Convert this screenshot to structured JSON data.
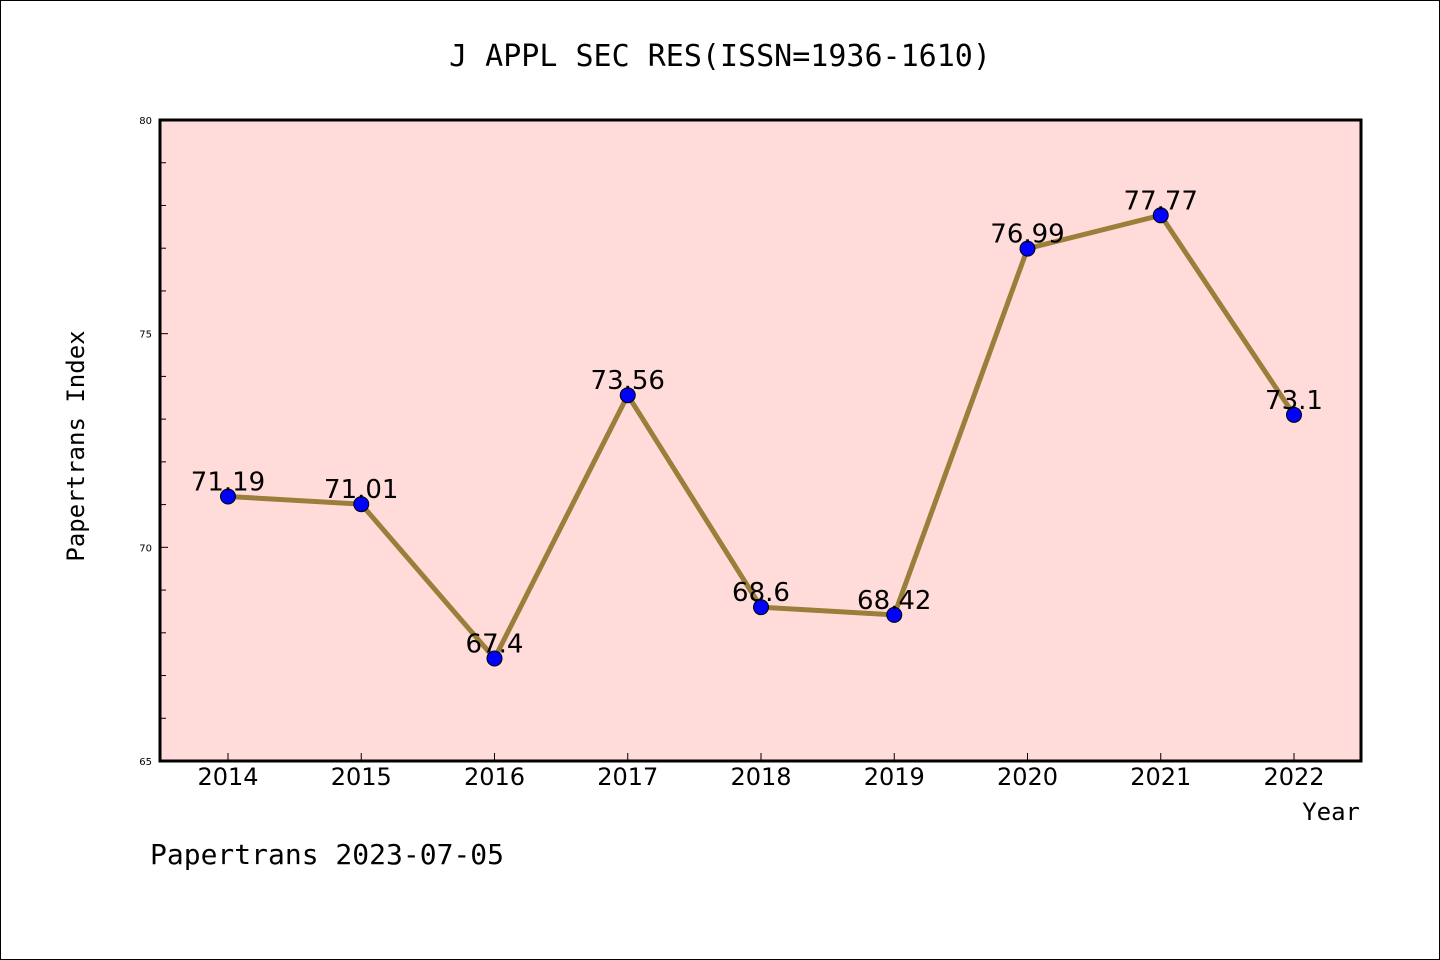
{
  "chart_data": {
    "type": "line",
    "title": "J APPL SEC RES(ISSN=1936-1610)",
    "xlabel": "Year",
    "ylabel": "Papertrans Index",
    "categories": [
      "2014",
      "2015",
      "2016",
      "2017",
      "2018",
      "2019",
      "2020",
      "2021",
      "2022"
    ],
    "series": [
      {
        "values": [
          71.19,
          71.01,
          67.4,
          73.56,
          68.6,
          68.42,
          76.99,
          77.77,
          73.1
        ],
        "labels": [
          "71.19",
          "71.01",
          "67.4",
          "73.56",
          "68.6",
          "68.42",
          "76.99",
          "77.77",
          "73.1"
        ]
      }
    ],
    "ylim": [
      65,
      80
    ],
    "yticks": [
      "65",
      "70",
      "75",
      "80"
    ],
    "grid": false,
    "legend": "none",
    "colors": {
      "plot_background": "#FFDCDA",
      "line": "#9A7E3A",
      "marker": "#0000FF"
    }
  },
  "footer": "Papertrans 2023-07-05"
}
